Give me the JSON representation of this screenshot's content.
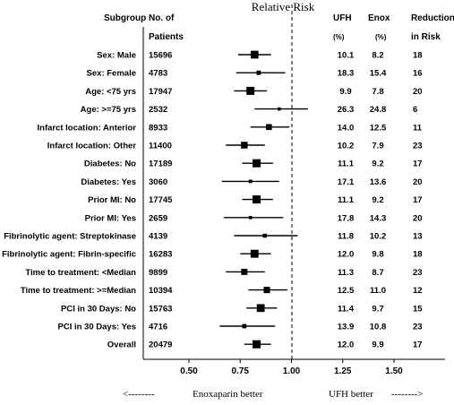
{
  "title": "Relative Risk",
  "headers": {
    "subgroup": "Subgroup",
    "patients_line1": "No. of",
    "patients_line2": "Patients",
    "ufh": "UFH",
    "enox": "Enox",
    "reduction_line1": "Reduction",
    "reduction_line2": "in Risk",
    "ufh_unit": "(%)",
    "enox_unit": "(%)"
  },
  "footer": {
    "left": "Enoxaparin better",
    "right": "UFH  better",
    "left_arrow": "<--------",
    "right_arrow": "-------->"
  },
  "chart_data": {
    "type": "forest",
    "title": "Relative Risk",
    "xlim": [
      0.5,
      1.5
    ],
    "xticks": [
      "0.50",
      "0.75",
      "1.00",
      "1.25",
      "1.50"
    ],
    "reference_line": 1.0,
    "rows": [
      {
        "label": "Sex: Male",
        "n": "15696",
        "rr": 0.82,
        "lo": 0.74,
        "hi": 0.9,
        "ufh": "10.1",
        "enox": "8.2",
        "reduction": "18"
      },
      {
        "label": "Sex: Female",
        "n": "4783",
        "rr": 0.84,
        "lo": 0.73,
        "hi": 0.97,
        "ufh": "18.3",
        "enox": "15.4",
        "reduction": "16"
      },
      {
        "label": "Age: <75 yrs",
        "n": "17947",
        "rr": 0.8,
        "lo": 0.72,
        "hi": 0.88,
        "ufh": "9.9",
        "enox": "7.8",
        "reduction": "20"
      },
      {
        "label": "Age: >=75 yrs",
        "n": "2532",
        "rr": 0.94,
        "lo": 0.82,
        "hi": 1.08,
        "ufh": "26.3",
        "enox": "24.8",
        "reduction": "6"
      },
      {
        "label": "Infarct location: Anterior",
        "n": "8933",
        "rr": 0.89,
        "lo": 0.8,
        "hi": 0.99,
        "ufh": "14.0",
        "enox": "12.5",
        "reduction": "11"
      },
      {
        "label": "Infarct location: Other",
        "n": "11400",
        "rr": 0.77,
        "lo": 0.68,
        "hi": 0.87,
        "ufh": "10.2",
        "enox": "7.9",
        "reduction": "23"
      },
      {
        "label": "Diabetes: No",
        "n": "17189",
        "rr": 0.83,
        "lo": 0.76,
        "hi": 0.91,
        "ufh": "11.1",
        "enox": "9.2",
        "reduction": "17"
      },
      {
        "label": "Diabetes: Yes",
        "n": "3060",
        "rr": 0.8,
        "lo": 0.66,
        "hi": 0.94,
        "ufh": "17.1",
        "enox": "13.6",
        "reduction": "20"
      },
      {
        "label": "Prior MI: No",
        "n": "17745",
        "rr": 0.83,
        "lo": 0.76,
        "hi": 0.91,
        "ufh": "11.1",
        "enox": "9.2",
        "reduction": "17"
      },
      {
        "label": "Prior MI: Yes",
        "n": "2659",
        "rr": 0.8,
        "lo": 0.67,
        "hi": 0.96,
        "ufh": "17.8",
        "enox": "14.3",
        "reduction": "20"
      },
      {
        "label": "Fibrinolytic agent: Streptokinase",
        "n": "4139",
        "rr": 0.87,
        "lo": 0.72,
        "hi": 1.03,
        "ufh": "11.8",
        "enox": "10.2",
        "reduction": "13"
      },
      {
        "label": "Fibrinolytic agent: Fibrin-specific",
        "n": "16283",
        "rr": 0.82,
        "lo": 0.75,
        "hi": 0.9,
        "ufh": "12.0",
        "enox": "9.8",
        "reduction": "18"
      },
      {
        "label": "Time to treatment: <Median",
        "n": "9899",
        "rr": 0.77,
        "lo": 0.68,
        "hi": 0.87,
        "ufh": "11.3",
        "enox": "8.7",
        "reduction": "23"
      },
      {
        "label": "Time to treatment: >=Median",
        "n": "10394",
        "rr": 0.88,
        "lo": 0.79,
        "hi": 0.98,
        "ufh": "12.5",
        "enox": "11.0",
        "reduction": "12"
      },
      {
        "label": "PCI in 30 Days: No",
        "n": "15763",
        "rr": 0.85,
        "lo": 0.78,
        "hi": 0.93,
        "ufh": "11.4",
        "enox": "9.7",
        "reduction": "15"
      },
      {
        "label": "PCI in 30 Days: Yes",
        "n": "4716",
        "rr": 0.77,
        "lo": 0.65,
        "hi": 0.92,
        "ufh": "13.9",
        "enox": "10.8",
        "reduction": "23"
      },
      {
        "label": "Overall",
        "n": "20479",
        "rr": 0.83,
        "lo": 0.77,
        "hi": 0.9,
        "ufh": "12.0",
        "enox": "9.9",
        "reduction": "17"
      }
    ]
  }
}
